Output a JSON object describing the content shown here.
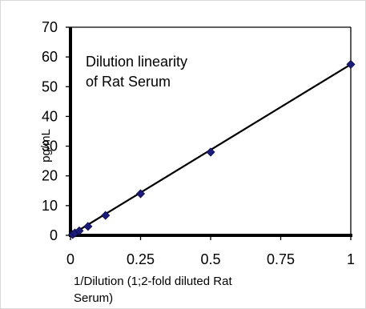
{
  "chart_data": {
    "type": "scatter",
    "title": "",
    "annotation_lines": [
      "Dilution linearity",
      "of Rat Serum"
    ],
    "xlabel_lines": [
      "1/Dilution (1;2-fold diluted Rat",
      "Serum)"
    ],
    "ylabel": "pg/mL",
    "xlim": [
      0,
      1
    ],
    "ylim": [
      0,
      70
    ],
    "x_ticks": [
      0,
      0.25,
      0.5,
      0.75,
      1
    ],
    "x_tick_labels": [
      "0",
      "0.25",
      "0.5",
      "0.75",
      "1"
    ],
    "y_ticks": [
      0,
      10,
      20,
      30,
      40,
      50,
      60,
      70
    ],
    "y_tick_labels": [
      "0",
      "10",
      "20",
      "30",
      "40",
      "50",
      "60",
      "70"
    ],
    "grid": false,
    "series": [
      {
        "x": [
          0.0078125,
          0.015625,
          0.03125,
          0.0625,
          0.125,
          0.25,
          0.5,
          1
        ],
        "y": [
          0.3,
          0.8,
          1.5,
          3,
          6.7,
          14,
          28,
          57.5
        ],
        "marker": "diamond",
        "color": "#1b1b7a"
      }
    ],
    "trendline": {
      "type": "linear",
      "x": [
        0,
        1
      ],
      "y": [
        0,
        57.5
      ],
      "color": "#000000"
    }
  }
}
